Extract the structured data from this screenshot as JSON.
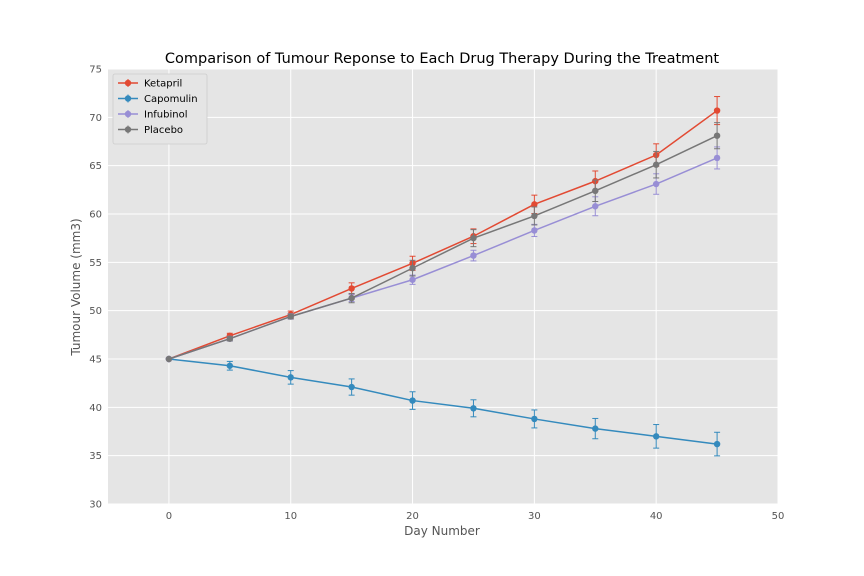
{
  "chart_data": {
    "type": "line",
    "title": "Comparison of Tumour Reponse to Each Drug Therapy During the Treatment",
    "xlabel": "Day Number",
    "ylabel": "Tumour Volume (mm3)",
    "xlim": [
      -5,
      50
    ],
    "ylim": [
      30,
      75
    ],
    "xticks": [
      0,
      10,
      20,
      30,
      40,
      50
    ],
    "yticks": [
      30,
      35,
      40,
      45,
      50,
      55,
      60,
      65,
      70,
      75
    ],
    "grid": true,
    "error_bars": true,
    "legend_position": "top-left",
    "x": [
      0,
      5,
      10,
      15,
      20,
      25,
      30,
      35,
      40,
      45
    ],
    "series": [
      {
        "name": "Ketapril",
        "color": "#E24A33",
        "values": [
          45.0,
          47.4,
          49.6,
          52.3,
          54.9,
          57.7,
          61.0,
          63.4,
          66.1,
          70.7
        ],
        "errors": [
          0.0,
          0.26,
          0.36,
          0.58,
          0.73,
          0.76,
          0.95,
          1.05,
          1.16,
          1.45
        ]
      },
      {
        "name": "Capomulin",
        "color": "#348ABD",
        "values": [
          45.0,
          44.3,
          43.1,
          42.1,
          40.7,
          39.9,
          38.8,
          37.8,
          37.0,
          36.2
        ],
        "errors": [
          0.0,
          0.45,
          0.7,
          0.84,
          0.91,
          0.88,
          0.93,
          1.05,
          1.22,
          1.22
        ]
      },
      {
        "name": "Infubinol",
        "color": "#988ED5",
        "values": [
          45.0,
          47.1,
          49.4,
          51.3,
          53.2,
          55.7,
          58.3,
          60.8,
          63.1,
          65.8
        ],
        "errors": [
          0.0,
          0.24,
          0.28,
          0.36,
          0.48,
          0.55,
          0.63,
          0.98,
          1.06,
          1.14
        ]
      },
      {
        "name": "Placebo",
        "color": "#777777",
        "values": [
          45.0,
          47.1,
          49.4,
          51.3,
          54.4,
          57.5,
          59.8,
          62.4,
          65.1,
          68.1
        ],
        "errors": [
          0.0,
          0.22,
          0.24,
          0.48,
          0.81,
          0.88,
          0.93,
          1.11,
          1.37,
          1.35
        ]
      }
    ]
  }
}
